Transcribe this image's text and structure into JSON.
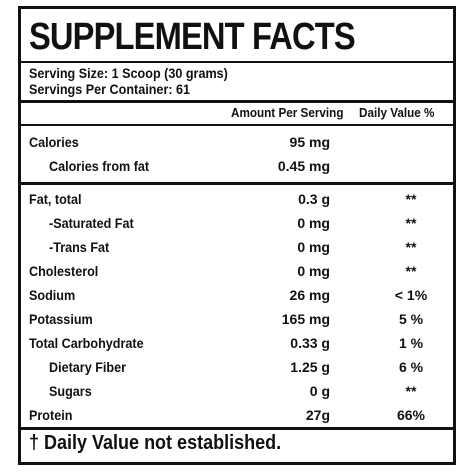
{
  "title": "SUPPLEMENT FACTS",
  "serving_size": "Serving Size: 1 Scoop (30 grams)",
  "servings_per_container": "Servings Per Container: 61",
  "columns": {
    "amount": "Amount Per Serving",
    "daily_value": "Daily Value %"
  },
  "rows": [
    {
      "name": "Calories",
      "amount": "95 mg",
      "dv": ""
    },
    {
      "name": "Calories from fat",
      "amount": "0.45 mg",
      "dv": ""
    },
    {
      "name": "Fat, total",
      "amount": "0.3 g",
      "dv": "**"
    },
    {
      "name": "-Saturated Fat",
      "amount": "0 mg",
      "dv": "**"
    },
    {
      "name": "-Trans Fat",
      "amount": "0 mg",
      "dv": "**"
    },
    {
      "name": "Cholesterol",
      "amount": "0 mg",
      "dv": "**"
    },
    {
      "name": "Sodium",
      "amount": "26 mg",
      "dv": "< 1%"
    },
    {
      "name": "Potassium",
      "amount": "165 mg",
      "dv": "5 %"
    },
    {
      "name": "Total Carbohydrate",
      "amount": "0.33 g",
      "dv": "1 %"
    },
    {
      "name": "Dietary Fiber",
      "amount": "1.25 g",
      "dv": "6 %"
    },
    {
      "name": "Sugars",
      "amount": "0 g",
      "dv": "**"
    },
    {
      "name": "Protein",
      "amount": "27g",
      "dv": "66%"
    }
  ],
  "footnote": "† Daily Value not established."
}
